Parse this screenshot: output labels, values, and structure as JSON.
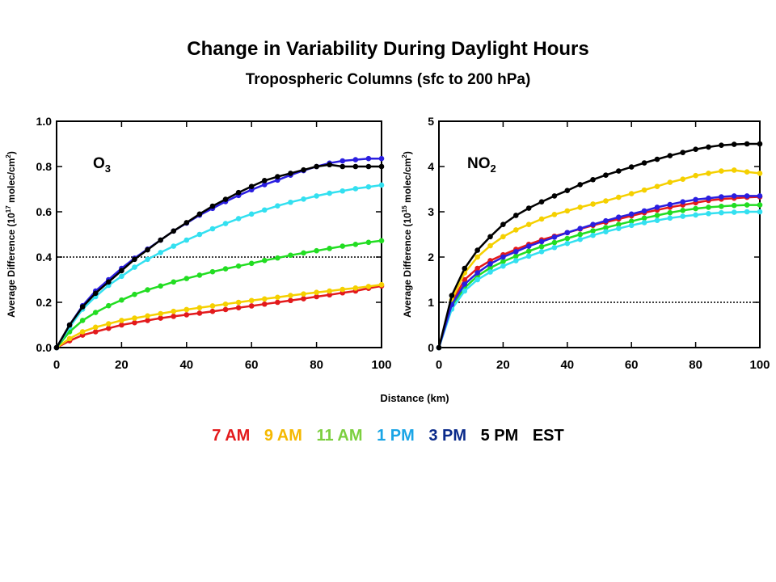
{
  "title": "Change in Variability During Daylight Hours",
  "subtitle": "Tropospheric Columns (sfc to 200 hPa)",
  "xlabel": "Distance (km)",
  "legend": [
    {
      "label": "7 AM",
      "color": "#e31a1c"
    },
    {
      "label": "9 AM",
      "color": "#f5b800"
    },
    {
      "label": "11 AM",
      "color": "#7ccf3f"
    },
    {
      "label": "1 PM",
      "color": "#1aa5e6"
    },
    {
      "label": "3 PM",
      "color": "#0a2a8a"
    },
    {
      "label": "5 PM",
      "color": "#000000"
    },
    {
      "label": "EST",
      "color": "#000000"
    }
  ],
  "chart_data": [
    {
      "type": "line",
      "panel_label_main": "O",
      "panel_label_sub": "3",
      "ylabel_prefix": "Average Difference (10",
      "ylabel_exp": "17",
      "ylabel_mid": " molec/cm",
      "ylabel_exp2": "2",
      "ylabel_suffix": ")",
      "xlim": [
        0,
        100
      ],
      "ylim": [
        0,
        1.0
      ],
      "xticks": [
        "0",
        "20",
        "40",
        "60",
        "80",
        "100"
      ],
      "yticks": [
        "0.0",
        "0.2",
        "0.4",
        "0.6",
        "0.8",
        "1.0"
      ],
      "reference_line": 0.4,
      "x": [
        0,
        4,
        8,
        12,
        16,
        20,
        24,
        28,
        32,
        36,
        40,
        44,
        48,
        52,
        56,
        60,
        64,
        68,
        72,
        76,
        80,
        84,
        88,
        92,
        96,
        100
      ],
      "series": [
        {
          "color": "#e31a1c",
          "values": [
            0,
            0.03,
            0.055,
            0.07,
            0.085,
            0.1,
            0.11,
            0.12,
            0.13,
            0.138,
            0.145,
            0.152,
            0.16,
            0.168,
            0.176,
            0.184,
            0.192,
            0.2,
            0.208,
            0.216,
            0.225,
            0.233,
            0.242,
            0.25,
            0.262,
            0.272
          ]
        },
        {
          "color": "#f5d000",
          "values": [
            0,
            0.04,
            0.07,
            0.09,
            0.105,
            0.12,
            0.13,
            0.14,
            0.15,
            0.16,
            0.168,
            0.176,
            0.184,
            0.192,
            0.2,
            0.208,
            0.215,
            0.222,
            0.23,
            0.237,
            0.244,
            0.25,
            0.257,
            0.263,
            0.27,
            0.278
          ]
        },
        {
          "color": "#22dd22",
          "values": [
            0,
            0.07,
            0.12,
            0.155,
            0.185,
            0.21,
            0.235,
            0.255,
            0.272,
            0.29,
            0.305,
            0.32,
            0.335,
            0.348,
            0.36,
            0.372,
            0.385,
            0.396,
            0.408,
            0.418,
            0.428,
            0.438,
            0.448,
            0.456,
            0.465,
            0.472
          ]
        },
        {
          "color": "#33e0f0",
          "values": [
            0,
            0.09,
            0.17,
            0.225,
            0.275,
            0.315,
            0.355,
            0.39,
            0.42,
            0.448,
            0.475,
            0.5,
            0.525,
            0.548,
            0.57,
            0.59,
            0.608,
            0.626,
            0.642,
            0.656,
            0.67,
            0.682,
            0.692,
            0.702,
            0.71,
            0.718
          ]
        },
        {
          "color": "#2a1ee0",
          "values": [
            0,
            0.1,
            0.185,
            0.25,
            0.3,
            0.35,
            0.395,
            0.435,
            0.475,
            0.515,
            0.55,
            0.585,
            0.615,
            0.645,
            0.672,
            0.697,
            0.72,
            0.74,
            0.762,
            0.782,
            0.8,
            0.815,
            0.825,
            0.83,
            0.835,
            0.835
          ]
        },
        {
          "color": "#000000",
          "values": [
            0,
            0.1,
            0.18,
            0.24,
            0.29,
            0.34,
            0.39,
            0.432,
            0.475,
            0.515,
            0.552,
            0.59,
            0.625,
            0.655,
            0.685,
            0.712,
            0.738,
            0.755,
            0.77,
            0.785,
            0.8,
            0.808,
            0.8,
            0.8,
            0.8,
            0.8
          ]
        }
      ]
    },
    {
      "type": "line",
      "panel_label_main": "NO",
      "panel_label_sub": "2",
      "ylabel_prefix": "Average Difference (10",
      "ylabel_exp": "15",
      "ylabel_mid": " molec/cm",
      "ylabel_exp2": "2",
      "ylabel_suffix": ")",
      "xlim": [
        0,
        100
      ],
      "ylim": [
        0,
        5
      ],
      "xticks": [
        "0",
        "20",
        "40",
        "60",
        "80",
        "100"
      ],
      "yticks": [
        "0",
        "1",
        "2",
        "3",
        "4",
        "5"
      ],
      "reference_line": 1,
      "x": [
        0,
        4,
        8,
        12,
        16,
        20,
        24,
        28,
        32,
        36,
        40,
        44,
        48,
        52,
        56,
        60,
        64,
        68,
        72,
        76,
        80,
        84,
        88,
        92,
        96,
        100
      ],
      "series": [
        {
          "color": "#e31a1c",
          "values": [
            0,
            1.0,
            1.5,
            1.75,
            1.92,
            2.05,
            2.17,
            2.28,
            2.38,
            2.46,
            2.54,
            2.62,
            2.7,
            2.77,
            2.84,
            2.91,
            2.98,
            3.04,
            3.1,
            3.15,
            3.2,
            3.25,
            3.28,
            3.3,
            3.32,
            3.33
          ]
        },
        {
          "color": "#f5d000",
          "values": [
            0,
            1.05,
            1.65,
            2.0,
            2.25,
            2.45,
            2.6,
            2.72,
            2.84,
            2.94,
            3.02,
            3.1,
            3.17,
            3.24,
            3.32,
            3.4,
            3.48,
            3.56,
            3.65,
            3.72,
            3.8,
            3.85,
            3.9,
            3.92,
            3.88,
            3.85
          ]
        },
        {
          "color": "#22dd22",
          "values": [
            0,
            0.9,
            1.32,
            1.58,
            1.76,
            1.9,
            2.02,
            2.13,
            2.23,
            2.32,
            2.41,
            2.5,
            2.58,
            2.65,
            2.72,
            2.79,
            2.86,
            2.92,
            2.98,
            3.03,
            3.07,
            3.1,
            3.12,
            3.14,
            3.15,
            3.15
          ]
        },
        {
          "color": "#33e0f0",
          "values": [
            0,
            0.85,
            1.25,
            1.5,
            1.67,
            1.8,
            1.92,
            2.02,
            2.12,
            2.21,
            2.3,
            2.39,
            2.48,
            2.56,
            2.63,
            2.7,
            2.76,
            2.81,
            2.86,
            2.9,
            2.93,
            2.96,
            2.98,
            2.99,
            3.0,
            3.0
          ]
        },
        {
          "color": "#2a1ee0",
          "values": [
            0,
            0.95,
            1.4,
            1.65,
            1.85,
            2.0,
            2.12,
            2.24,
            2.34,
            2.44,
            2.54,
            2.63,
            2.72,
            2.8,
            2.88,
            2.95,
            3.02,
            3.1,
            3.16,
            3.22,
            3.27,
            3.3,
            3.33,
            3.35,
            3.35,
            3.35
          ]
        },
        {
          "color": "#000000",
          "values": [
            0,
            1.15,
            1.75,
            2.15,
            2.45,
            2.72,
            2.92,
            3.08,
            3.22,
            3.35,
            3.47,
            3.6,
            3.71,
            3.81,
            3.9,
            3.99,
            4.08,
            4.16,
            4.24,
            4.31,
            4.38,
            4.43,
            4.47,
            4.49,
            4.5,
            4.5
          ]
        }
      ]
    }
  ]
}
